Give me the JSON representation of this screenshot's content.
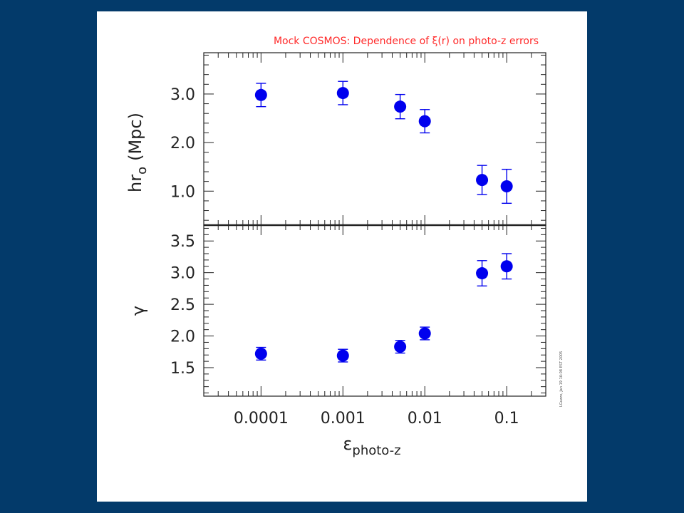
{
  "chart_data": {
    "title": "Mock COSMOS: Dependence of ξ(r) on photo-z errors",
    "x_axis": {
      "label": "ε",
      "label_subscript": "photo-z",
      "scale": "log",
      "range": [
        2e-05,
        0.3
      ],
      "ticks": [
        {
          "value": 0.0001,
          "label": "0.0001"
        },
        {
          "value": 0.001,
          "label": "0.001"
        },
        {
          "value": 0.01,
          "label": "0.01"
        },
        {
          "value": 0.1,
          "label": "0.1"
        }
      ]
    },
    "colors": {
      "points": "#0000ee",
      "frame": "#222222",
      "title": "#ff2a2a"
    },
    "stamp": "LGuzzo, Jan 19 16:08 EST 2005",
    "panels": [
      {
        "type": "scatter",
        "ylabel_main": "hr",
        "ylabel_sub": "o",
        "ylabel_unit": "(Mpc)",
        "ylim": [
          0.3,
          3.85
        ],
        "y_ticks": [
          {
            "value": 1.0,
            "label": "1.0"
          },
          {
            "value": 2.0,
            "label": "2.0"
          },
          {
            "value": 3.0,
            "label": "3.0"
          }
        ],
        "points": [
          {
            "x": 0.0001,
            "y": 2.98,
            "err": 0.24
          },
          {
            "x": 0.001,
            "y": 3.02,
            "err": 0.24
          },
          {
            "x": 0.005,
            "y": 2.74,
            "err": 0.25
          },
          {
            "x": 0.01,
            "y": 2.44,
            "err": 0.24
          },
          {
            "x": 0.05,
            "y": 1.23,
            "err": 0.3
          },
          {
            "x": 0.1,
            "y": 1.1,
            "err": 0.35
          }
        ]
      },
      {
        "type": "scatter",
        "ylabel_main": "γ",
        "ylim": [
          1.05,
          3.75
        ],
        "y_ticks": [
          {
            "value": 1.5,
            "label": "1.5"
          },
          {
            "value": 2.0,
            "label": "2.0"
          },
          {
            "value": 2.5,
            "label": "2.5"
          },
          {
            "value": 3.0,
            "label": "3.0"
          },
          {
            "value": 3.5,
            "label": "3.5"
          }
        ],
        "points": [
          {
            "x": 0.0001,
            "y": 1.72,
            "err": 0.1
          },
          {
            "x": 0.001,
            "y": 1.69,
            "err": 0.1
          },
          {
            "x": 0.005,
            "y": 1.83,
            "err": 0.1
          },
          {
            "x": 0.01,
            "y": 2.04,
            "err": 0.1
          },
          {
            "x": 0.05,
            "y": 2.99,
            "err": 0.2
          },
          {
            "x": 0.1,
            "y": 3.1,
            "err": 0.2
          }
        ]
      }
    ]
  }
}
